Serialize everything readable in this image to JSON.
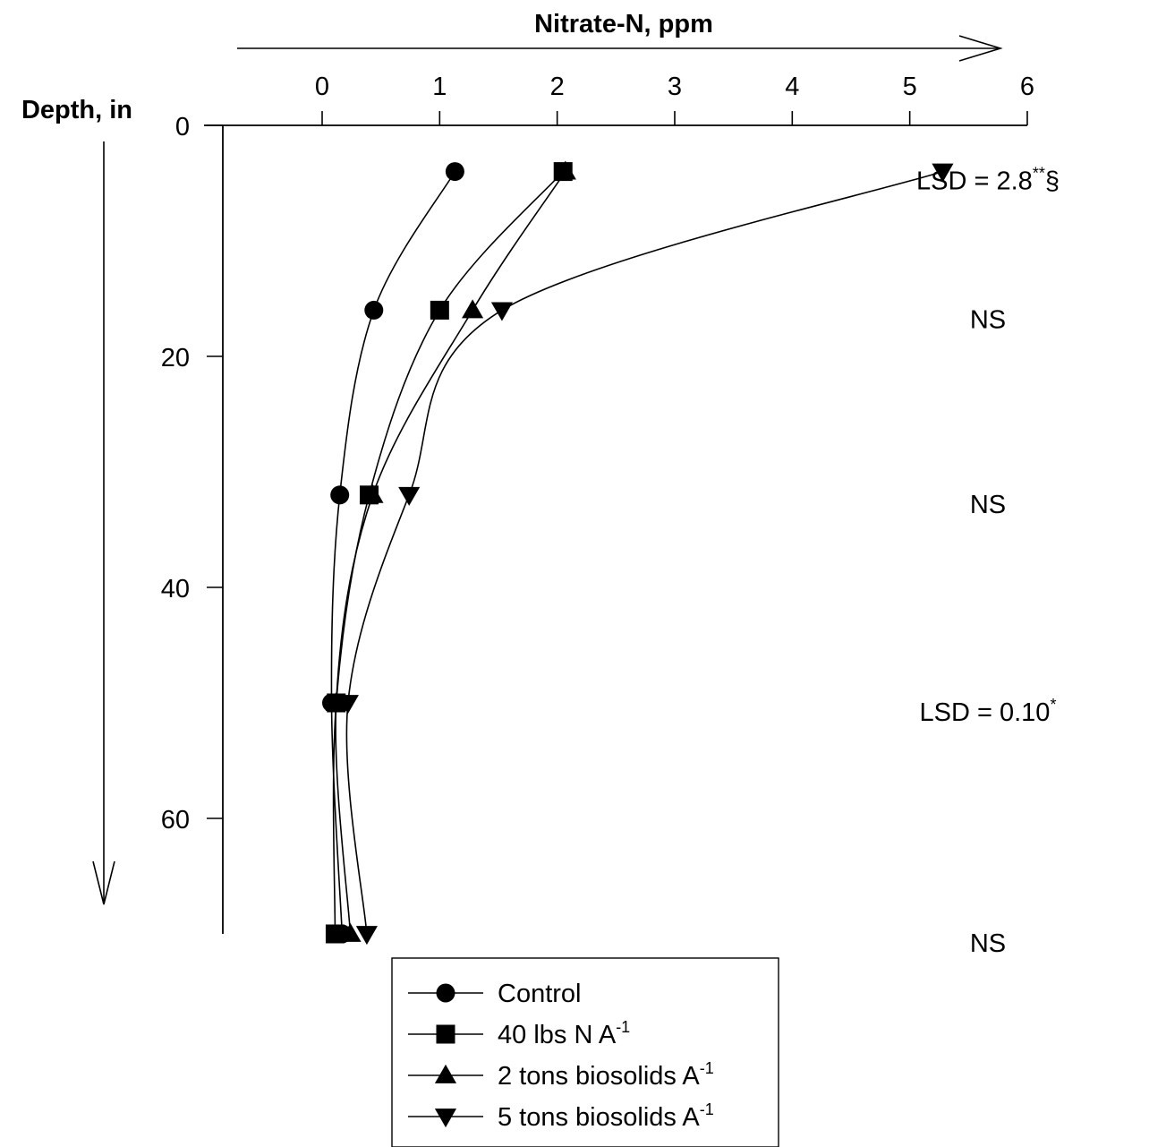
{
  "chart_data": {
    "type": "line",
    "title": "",
    "xlabel": "Nitrate-N, ppm",
    "ylabel": "Depth, in",
    "xlim": [
      0,
      6
    ],
    "ylim": [
      0,
      70
    ],
    "y_inverted": true,
    "x_axis_position": "top",
    "x_ticks": [
      "0",
      "1",
      "2",
      "3",
      "4",
      "5",
      "6"
    ],
    "y_ticks": [
      "0",
      "20",
      "40",
      "60"
    ],
    "depths": [
      4,
      16,
      32,
      50,
      70
    ],
    "series": [
      {
        "name": "Control",
        "name_suffix": "",
        "marker": "circle",
        "x": [
          1.13,
          0.44,
          0.15,
          0.08,
          0.17
        ]
      },
      {
        "name": "40 lbs N A",
        "name_suffix": "-1",
        "marker": "square",
        "x": [
          2.05,
          1.0,
          0.4,
          0.12,
          0.11
        ]
      },
      {
        "name": "2 tons biosolids A",
        "name_suffix": "-1",
        "marker": "triangle-up",
        "x": [
          2.07,
          1.28,
          0.43,
          0.12,
          0.24
        ]
      },
      {
        "name": "5 tons biosolids A",
        "name_suffix": "-1",
        "marker": "triangle-down",
        "x": [
          5.28,
          1.53,
          0.74,
          0.22,
          0.38
        ]
      }
    ],
    "annotations": [
      {
        "depth": 4,
        "text": "LSD = 2.8",
        "sup": "**",
        "suffix": "§"
      },
      {
        "depth": 16,
        "text": "NS",
        "sup": "",
        "suffix": ""
      },
      {
        "depth": 32,
        "text": "NS",
        "sup": "",
        "suffix": ""
      },
      {
        "depth": 50,
        "text": "LSD = 0.10",
        "sup": "*",
        "suffix": ""
      },
      {
        "depth": 70,
        "text": "NS",
        "sup": "",
        "suffix": ""
      }
    ],
    "grid": false,
    "legend": "bottom-center"
  }
}
